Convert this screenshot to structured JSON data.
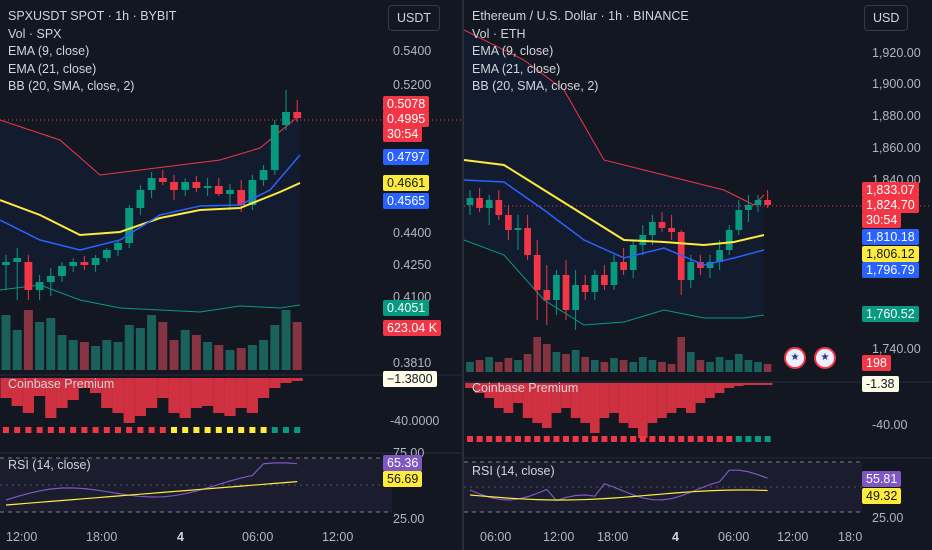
{
  "left": {
    "symbol": "SPXUSDT SPOT · 1h · BYBIT",
    "vol": "Vol · SPX",
    "ema9": "EMA (9, close)",
    "ema21": "EMA (21, close)",
    "bb": "BB (20, SMA, close, 2)",
    "currency": "USDT",
    "ticks": [
      "0.5400",
      "0.5200",
      "0.4400",
      "0.4250",
      "0.4100",
      "0.3810",
      "-40.0000",
      "75.00",
      "25.00"
    ],
    "tags": {
      "bb_upper": "0.5078",
      "price": "0.4995",
      "countdown": "30:54",
      "ema9": "0.4797",
      "bb_basis": "0.4661",
      "ema21": "0.4565",
      "bb_lower": "0.4051",
      "volume": "623.04 K",
      "coinbase": "−1.3800",
      "rsi": "65.36",
      "rsi_ma": "56.69"
    },
    "coinbase_label": "Coinbase Premium",
    "rsi_label": "RSI (14, close)",
    "xticks": [
      "12:00",
      "18:00",
      "4",
      "06:00",
      "12:00"
    ]
  },
  "right": {
    "symbol": "Ethereum / U.S. Dollar · 1h · BINANCE",
    "vol": "Vol · ETH",
    "ema9": "EMA (9, close)",
    "ema21": "EMA (21, close)",
    "bb": "BB (20, SMA, close, 2)",
    "currency": "USD",
    "ticks": [
      "1,920.00",
      "1,900.00",
      "1,880.00",
      "1,860.00",
      "1,840.00",
      "1,740.00",
      "-40.00",
      "25.00"
    ],
    "tags": {
      "bb_upper": "1,833.07",
      "price": "1,824.70",
      "countdown": "30:54",
      "ema9": "1,810.18",
      "bb_basis": "1,806.12",
      "ema21": "1,796.79",
      "bb_lower": "1,760.52",
      "volume": "198",
      "coinbase": "-1.38",
      "rsi": "55.81",
      "rsi_ma": "49.32"
    },
    "coinbase_label": "Coinbase Premium",
    "rsi_label": "RSI (14, close)",
    "xticks": [
      "06:00",
      "12:00",
      "18:00",
      "4",
      "06:00",
      "12:00",
      "18:0"
    ]
  },
  "colors": {
    "up": "#089981",
    "down": "#f23645",
    "ema9": "#2962ff",
    "ema21": "#2962ff",
    "bb_basis": "#ffeb3b",
    "bb_upper": "#f23645",
    "bb_lower": "#089981",
    "rsi": "#7e57c2"
  }
}
